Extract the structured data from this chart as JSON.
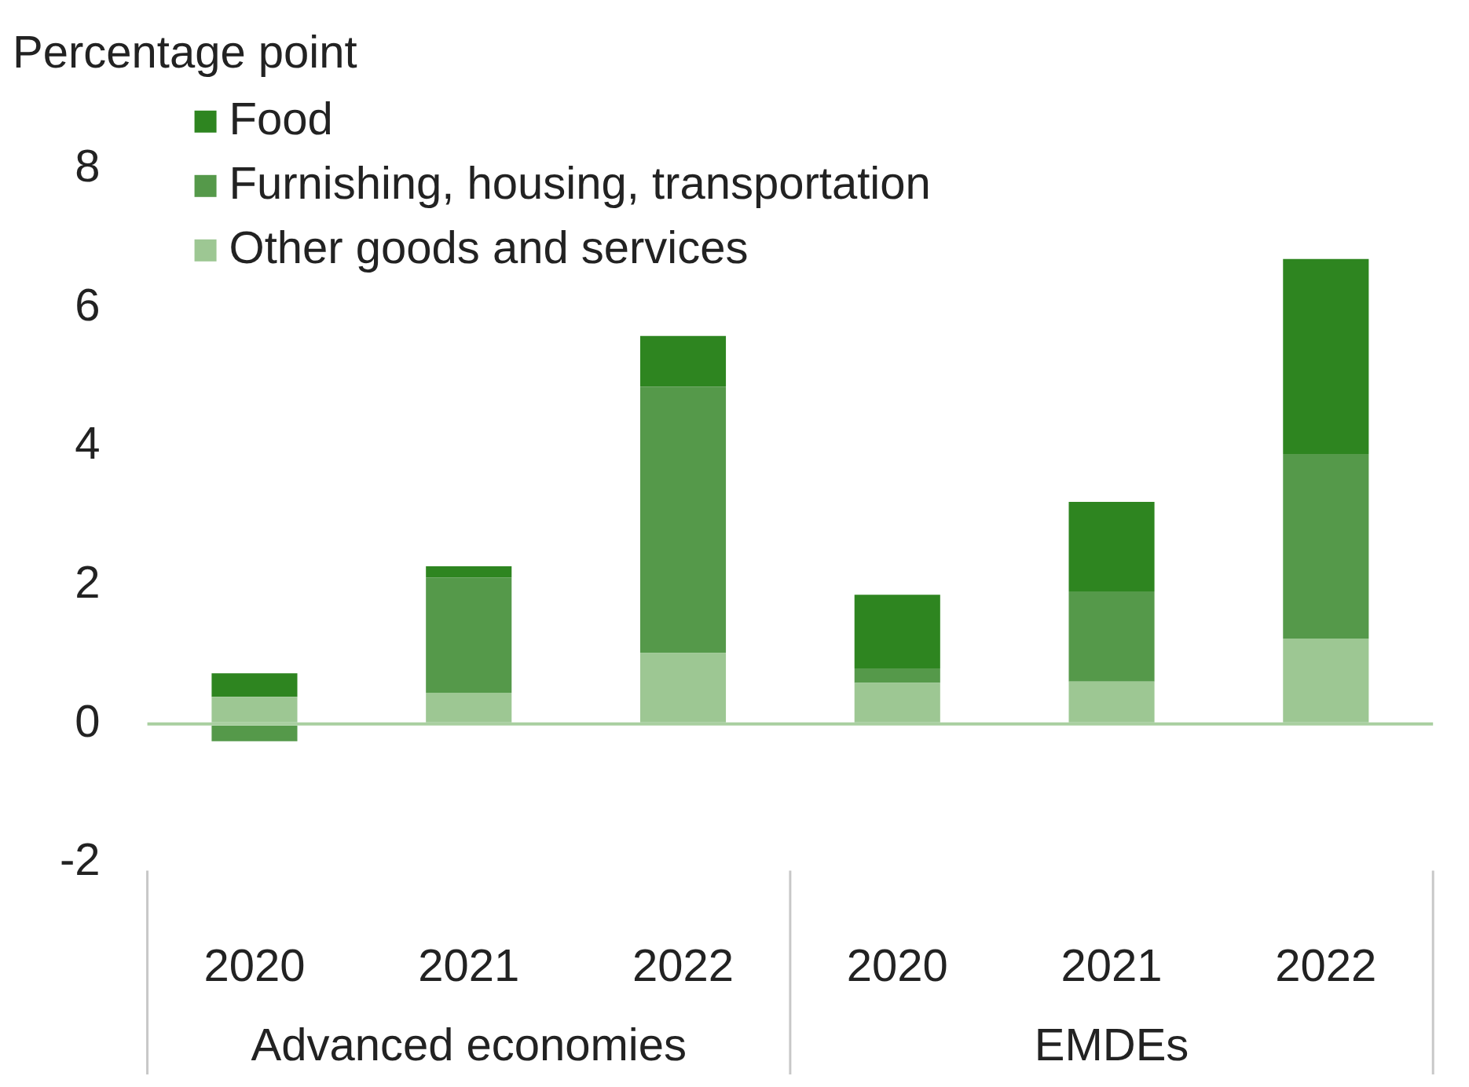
{
  "chart_data": {
    "type": "bar",
    "ylabel": "Percentage point",
    "stacked": true,
    "legend": "top left",
    "grid": false,
    "categories": [
      "2020",
      "2021",
      "2022",
      "2020",
      "2021",
      "2022"
    ],
    "annotations": [
      "Advanced economies",
      "EMDEs"
    ],
    "ref_lines": [
      {
        "axis": "y",
        "value": 0,
        "color": "#a9cfa0"
      }
    ],
    "ylim": [
      -2,
      8
    ],
    "yticks": [
      -2,
      0,
      2,
      4,
      6,
      8
    ],
    "series": [
      {
        "name": "Other goods and services",
        "color": "#9dc793",
        "values": [
          0.39,
          0.45,
          1.02,
          0.59,
          0.61,
          1.23
        ]
      },
      {
        "name": "Furnishing, housing, transportation",
        "color": "#55994a",
        "values": [
          -0.25,
          1.66,
          3.84,
          0.21,
          1.3,
          2.66
        ]
      },
      {
        "name": "Food",
        "color": "#2e8520",
        "values": [
          0.34,
          0.16,
          0.73,
          1.06,
          1.29,
          2.81
        ]
      }
    ]
  }
}
